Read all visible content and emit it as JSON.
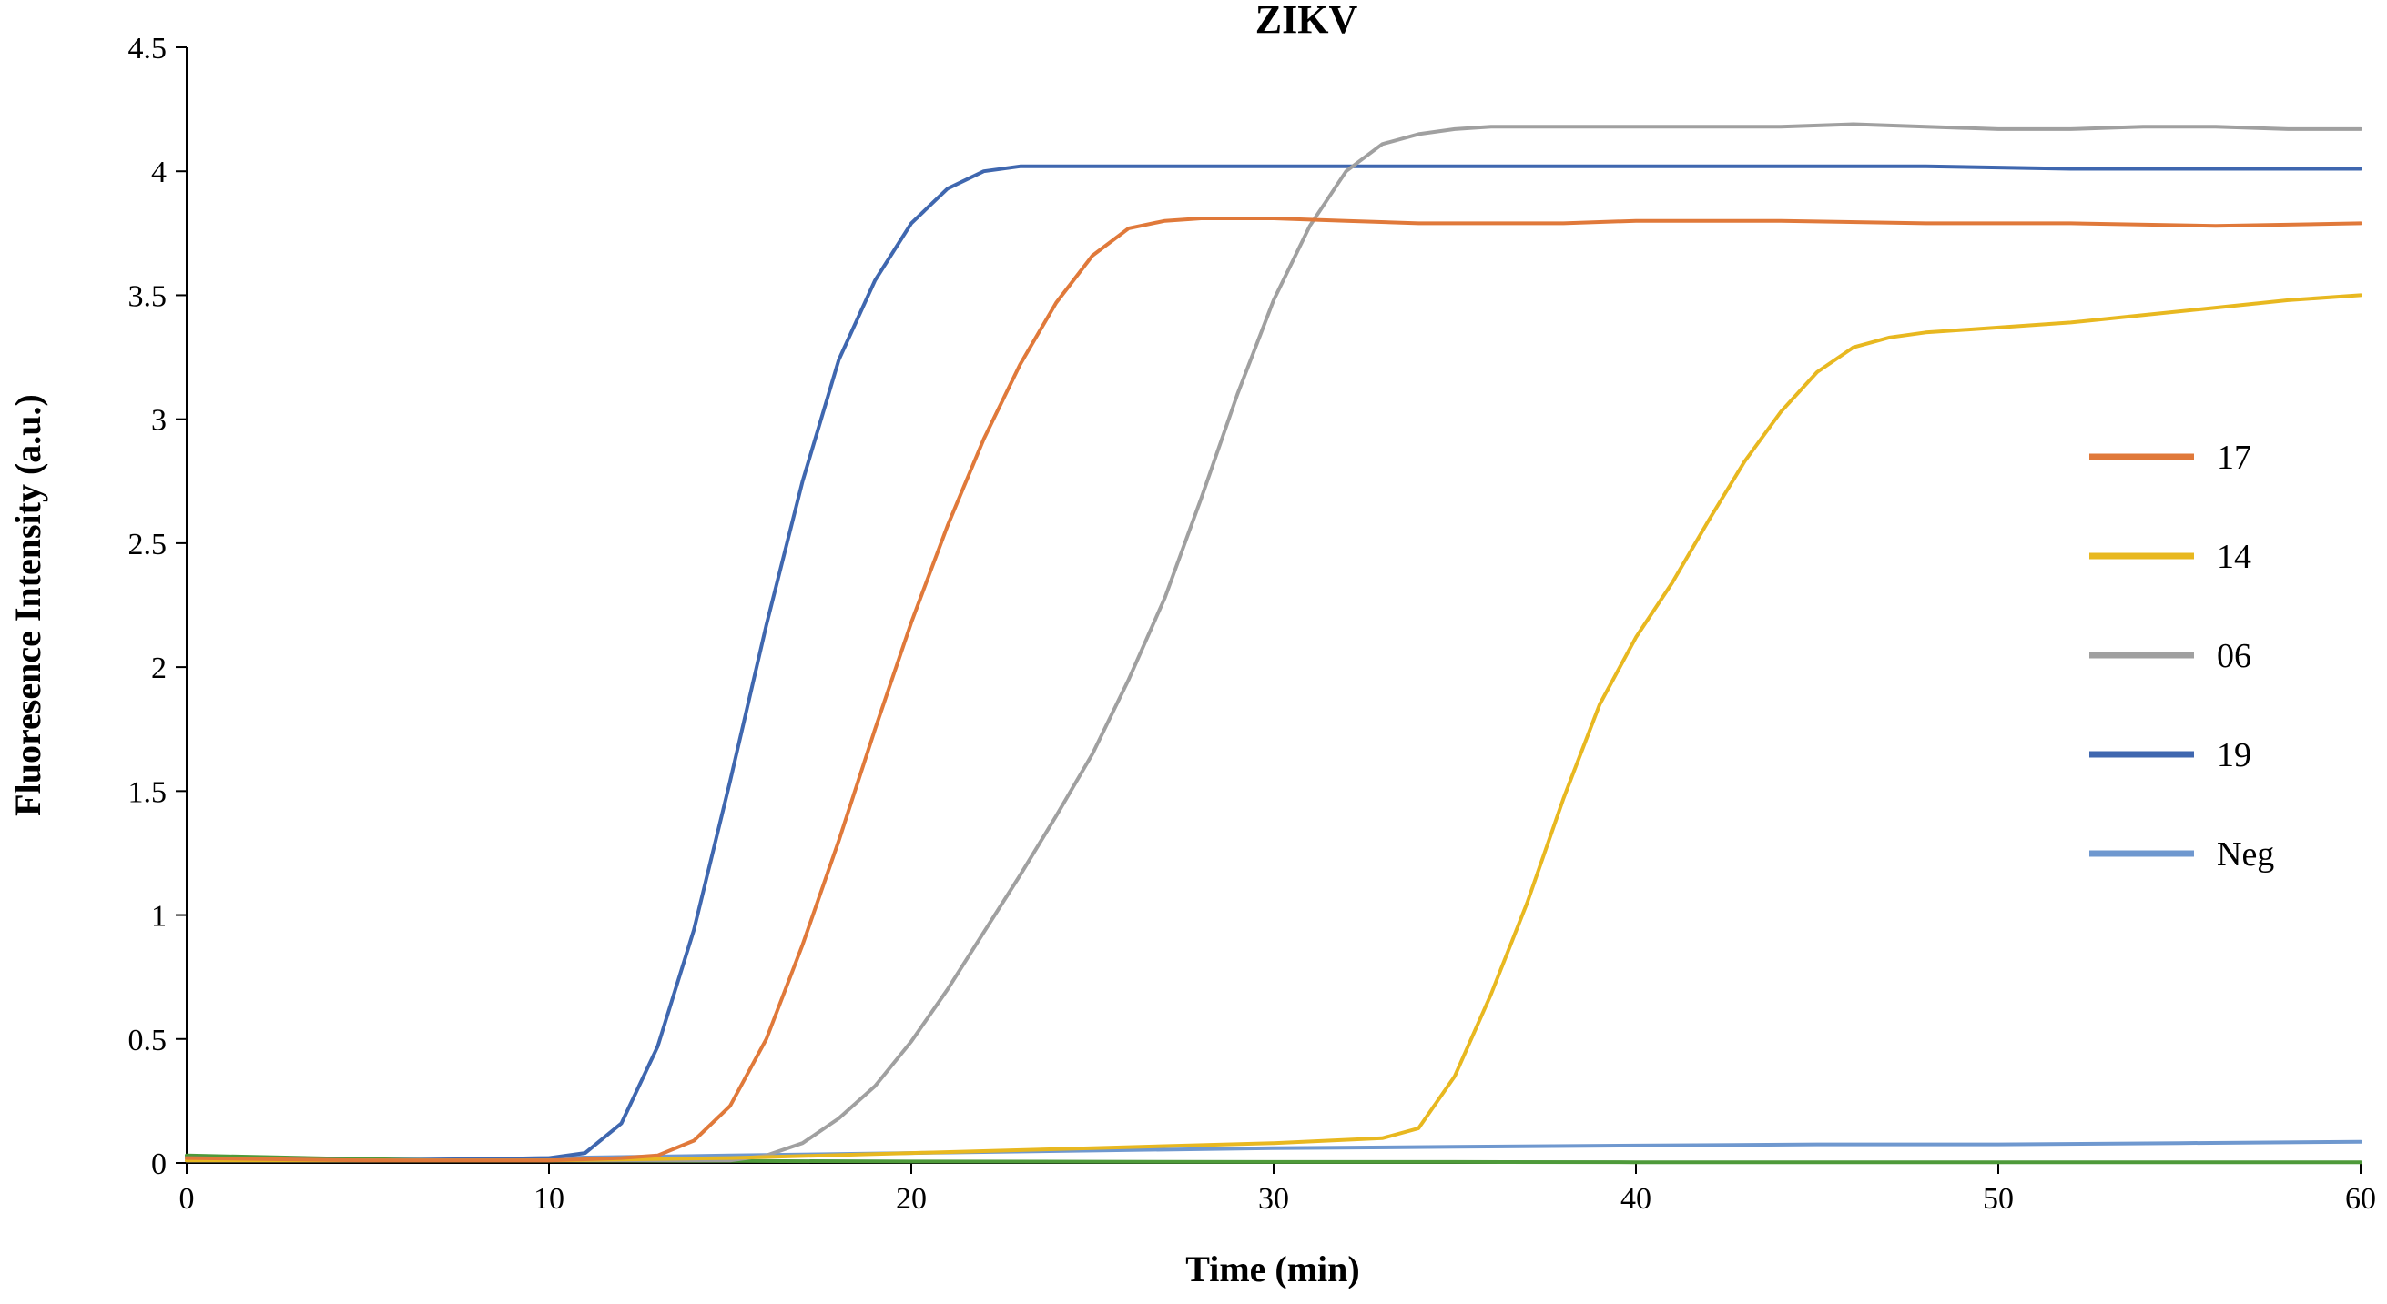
{
  "chart_data": {
    "type": "line",
    "title": "ZIKV",
    "xlabel": "Time (min)",
    "ylabel": "Fluoresence Intensity (a.u.)",
    "xlim": [
      0,
      60
    ],
    "ylim": [
      0,
      4.5
    ],
    "xticks": [
      0,
      10,
      20,
      30,
      40,
      50,
      60
    ],
    "xtick_labels": [
      "0",
      "10",
      "20",
      "30",
      "40",
      "50",
      "60"
    ],
    "yticks": [
      0,
      0.5,
      1,
      1.5,
      2,
      2.5,
      3,
      3.5,
      4,
      4.5
    ],
    "ytick_labels": [
      "0",
      "0.5",
      "1",
      "1.5",
      "2",
      "2.5",
      "3",
      "3.5",
      "4",
      "4.5"
    ],
    "grid": false,
    "legend_position": "right",
    "series": [
      {
        "name": "17",
        "color": "#E0793A",
        "x": [
          0,
          5,
          10,
          12,
          13,
          14,
          15,
          16,
          17,
          18,
          19,
          20,
          21,
          22,
          23,
          24,
          25,
          26,
          27,
          28,
          29,
          30,
          32,
          34,
          36,
          38,
          40,
          44,
          48,
          52,
          56,
          60
        ],
        "y": [
          0.02,
          0.01,
          0.01,
          0.02,
          0.03,
          0.09,
          0.23,
          0.5,
          0.88,
          1.3,
          1.75,
          2.18,
          2.57,
          2.92,
          3.22,
          3.47,
          3.66,
          3.77,
          3.8,
          3.81,
          3.81,
          3.81,
          3.8,
          3.79,
          3.79,
          3.79,
          3.8,
          3.8,
          3.79,
          3.79,
          3.78,
          3.79
        ]
      },
      {
        "name": "14",
        "color": "#E8B820",
        "x": [
          0,
          5,
          10,
          15,
          20,
          25,
          30,
          33,
          34,
          35,
          36,
          37,
          38,
          39,
          40,
          41,
          42,
          43,
          44,
          45,
          46,
          47,
          48,
          50,
          52,
          54,
          56,
          58,
          60
        ],
        "y": [
          0.01,
          0.01,
          0.01,
          0.02,
          0.04,
          0.06,
          0.08,
          0.1,
          0.14,
          0.35,
          0.68,
          1.05,
          1.47,
          1.85,
          2.12,
          2.34,
          2.59,
          2.83,
          3.03,
          3.19,
          3.29,
          3.33,
          3.35,
          3.37,
          3.39,
          3.42,
          3.45,
          3.48,
          3.5
        ]
      },
      {
        "name": "06",
        "color": "#A0A0A0",
        "x": [
          0,
          5,
          10,
          15,
          16,
          17,
          18,
          19,
          20,
          21,
          22,
          23,
          24,
          25,
          26,
          27,
          28,
          29,
          30,
          31,
          32,
          33,
          34,
          35,
          36,
          38,
          40,
          42,
          44,
          46,
          48,
          50,
          52,
          54,
          56,
          58,
          60
        ],
        "y": [
          0.01,
          0.01,
          0.01,
          0.01,
          0.03,
          0.08,
          0.18,
          0.31,
          0.49,
          0.7,
          0.93,
          1.16,
          1.4,
          1.65,
          1.95,
          2.28,
          2.68,
          3.1,
          3.48,
          3.78,
          4.0,
          4.11,
          4.15,
          4.17,
          4.18,
          4.18,
          4.18,
          4.18,
          4.18,
          4.19,
          4.18,
          4.17,
          4.17,
          4.18,
          4.18,
          4.17,
          4.17
        ]
      },
      {
        "name": "19",
        "color": "#3F67AF",
        "x": [
          0,
          5,
          10,
          11,
          12,
          13,
          14,
          15,
          16,
          17,
          18,
          19,
          20,
          21,
          22,
          23,
          24,
          26,
          28,
          30,
          32,
          34,
          36,
          40,
          44,
          48,
          52,
          56,
          60
        ],
        "y": [
          0.02,
          0.01,
          0.02,
          0.04,
          0.16,
          0.47,
          0.94,
          1.54,
          2.17,
          2.75,
          3.24,
          3.56,
          3.79,
          3.93,
          4.0,
          4.02,
          4.02,
          4.02,
          4.02,
          4.02,
          4.02,
          4.02,
          4.02,
          4.02,
          4.02,
          4.02,
          4.01,
          4.01,
          4.01
        ]
      },
      {
        "name": "Neg",
        "color": "#6F98CF",
        "x": [
          0,
          5,
          10,
          15,
          20,
          25,
          30,
          35,
          40,
          45,
          50,
          55,
          60
        ],
        "y": [
          0.01,
          0.01,
          0.02,
          0.03,
          0.04,
          0.05,
          0.06,
          0.065,
          0.07,
          0.075,
          0.075,
          0.08,
          0.085
        ]
      },
      {
        "color": "#4E9A3A",
        "x": [
          0,
          5,
          10,
          15,
          20,
          25,
          30,
          35,
          40,
          45,
          50,
          55,
          60
        ],
        "y": [
          0.03,
          0.015,
          0.01,
          0.008,
          0.006,
          0.005,
          0.004,
          0.004,
          0.003,
          0.003,
          0.003,
          0.003,
          0.003
        ]
      }
    ]
  }
}
